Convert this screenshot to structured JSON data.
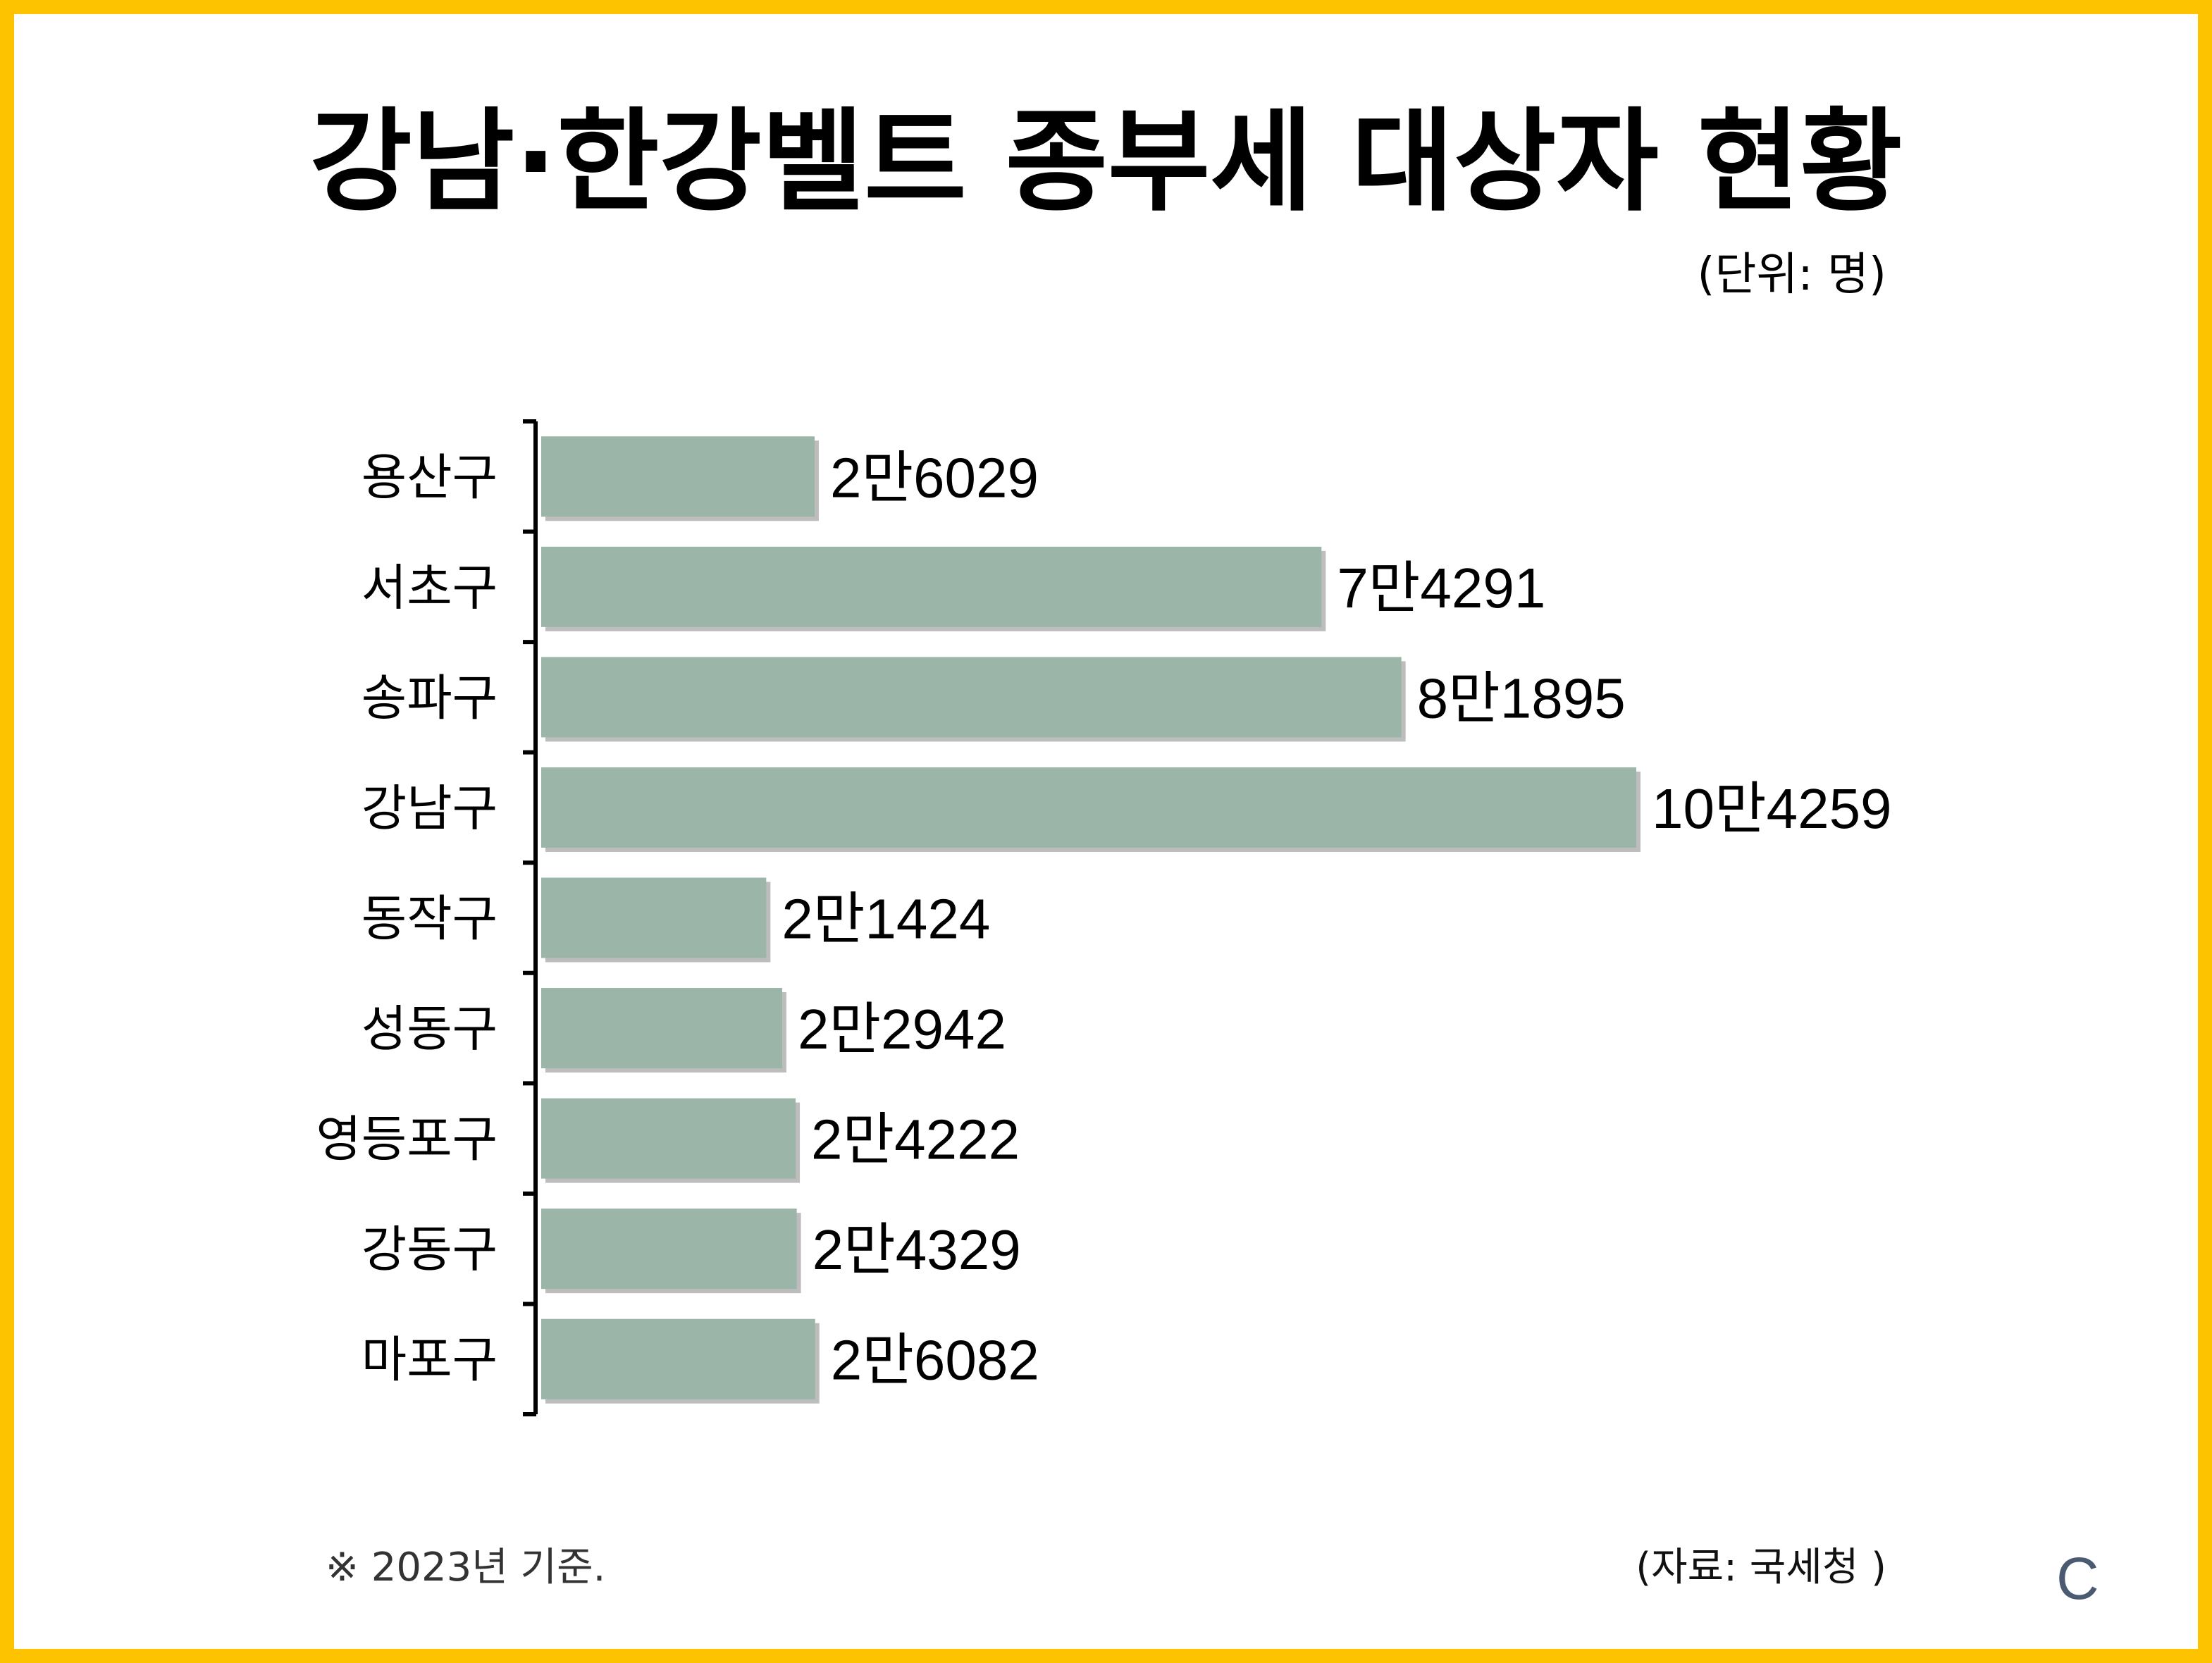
{
  "title": "강남·한강벨트 종부세 대상자 현황",
  "unit": "(단위: 명)",
  "footnote": "※ 2023년 기준.",
  "source": "(자료: 국세청 )",
  "logo": "C",
  "colors": {
    "border": "#FDC200",
    "bar": "#9BB5A8",
    "bar_shadow": "#BDBDBD",
    "text": "#000000",
    "logo": "#4A5A70"
  },
  "chart_data": {
    "type": "bar",
    "orientation": "horizontal",
    "categories": [
      "용산구",
      "서초구",
      "송파구",
      "강남구",
      "동작구",
      "성동구",
      "영등포구",
      "강동구",
      "마포구"
    ],
    "values": [
      26029,
      74291,
      81895,
      104259,
      21424,
      22942,
      24222,
      24329,
      26082
    ],
    "value_labels": [
      "2만6029",
      "7만4291",
      "8만1895",
      "10만4259",
      "2만1424",
      "2만2942",
      "2만4222",
      "2만4329",
      "2만6082"
    ],
    "title": "강남·한강벨트 종부세 대상자 현황",
    "unit": "(단위: 명)",
    "grid": false,
    "legend": "none"
  }
}
